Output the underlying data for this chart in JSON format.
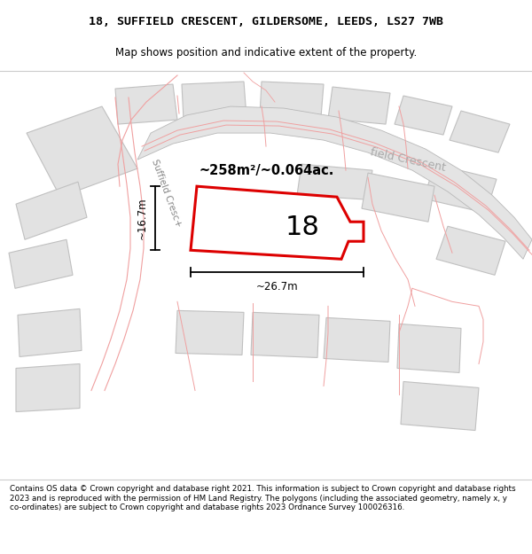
{
  "title_line1": "18, SUFFIELD CRESCENT, GILDERSOME, LEEDS, LS27 7WB",
  "title_line2": "Map shows position and indicative extent of the property.",
  "footer_text": "Contains OS data © Crown copyright and database right 2021. This information is subject to Crown copyright and database rights 2023 and is reproduced with the permission of HM Land Registry. The polygons (including the associated geometry, namely x, y co-ordinates) are subject to Crown copyright and database rights 2023 Ordnance Survey 100026316.",
  "area_label": "~258m²/~0.064ac.",
  "plot_number": "18",
  "dim_width": "~26.7m",
  "dim_height": "~16.7m",
  "plot_edge_color": "#dd0000",
  "road_label_left": "Suffield Cresc",
  "road_label_right": "field Crescent",
  "bg_color": "#f8f8f8",
  "plot_fill": "#ffffff",
  "plot_gray": "#e0e0e0",
  "road_fill": "#e8e8e8",
  "road_edge": "#b0b0b0",
  "pink_line": "#f0a0a0",
  "gray_line": "#c0c0c0"
}
